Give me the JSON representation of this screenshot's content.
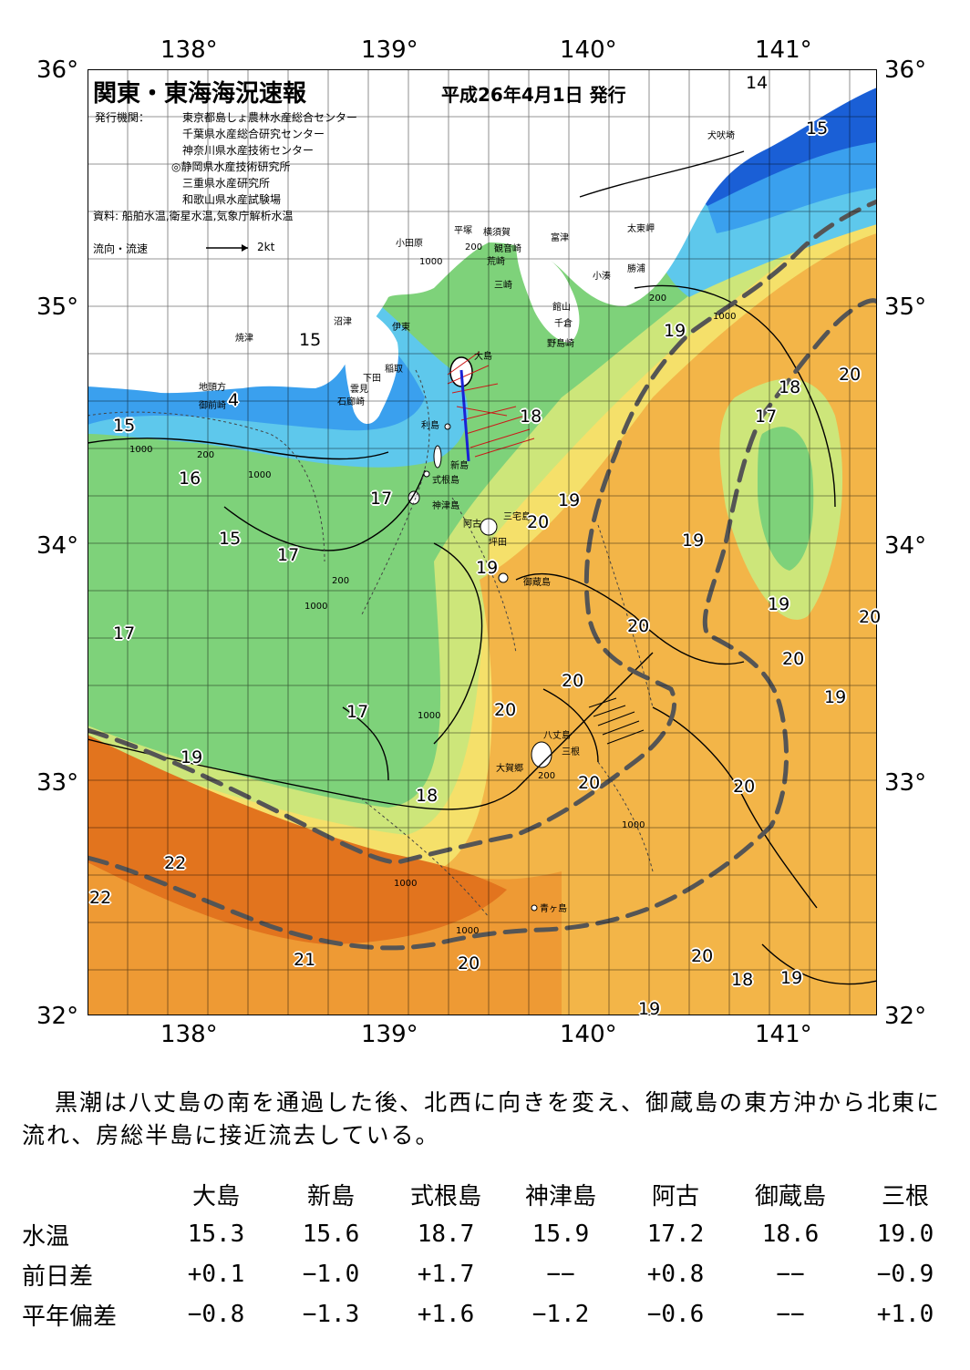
{
  "title": "関東・東海海況速報",
  "issue_date": "平成26年4月1日 発行",
  "issuer_label": "発行機関：",
  "issuers": [
    "東京都島しょ農林水産総合センター",
    "千葉県水産総合研究センター",
    "神奈川県水産技術センター",
    "◎静岡県水産技術研究所",
    "三重県水産研究所",
    "和歌山県水産試験場"
  ],
  "source": "資料: 船舶水温,衛星水温,気象庁解析水温",
  "flow_legend": {
    "label": "流向・流速",
    "speed": "2kt"
  },
  "axes": {
    "lon_ticks": [
      "138°",
      "139°",
      "140°",
      "141°"
    ],
    "lat_ticks": [
      "36°",
      "35°",
      "34°",
      "33°",
      "32°"
    ]
  },
  "colors": {
    "t14": "#1a5fd6",
    "t15": "#3aa0ee",
    "t16": "#5ec8ec",
    "t17": "#7ed27a",
    "t18": "#cde67a",
    "t19": "#f5e06a",
    "t20": "#f3b548",
    "t21": "#ee9a34",
    "t22": "#e2741e",
    "land": "#ffffff",
    "kuroshio_axis": "#555555",
    "track": "#1a22d6"
  },
  "places": [
    {
      "name": "小田原"
    },
    {
      "name": "平塚"
    },
    {
      "name": "横須賀"
    },
    {
      "name": "観音崎"
    },
    {
      "name": "富津"
    },
    {
      "name": "荒崎"
    },
    {
      "name": "三崎"
    },
    {
      "name": "館山"
    },
    {
      "name": "千倉"
    },
    {
      "name": "野島崎"
    },
    {
      "name": "小湊"
    },
    {
      "name": "勝浦"
    },
    {
      "name": "太東岬"
    },
    {
      "name": "犬吠埼"
    },
    {
      "name": "沼津"
    },
    {
      "name": "伊東"
    },
    {
      "name": "焼津"
    },
    {
      "name": "稲取"
    },
    {
      "name": "下田"
    },
    {
      "name": "雲見"
    },
    {
      "name": "石廊崎"
    },
    {
      "name": "地頭方"
    },
    {
      "name": "御前崎"
    },
    {
      "name": "大島"
    },
    {
      "name": "利島"
    },
    {
      "name": "新島"
    },
    {
      "name": "式根島"
    },
    {
      "name": "神津島"
    },
    {
      "name": "三宅島"
    },
    {
      "name": "阿古"
    },
    {
      "name": "坪田"
    },
    {
      "name": "御蔵島"
    },
    {
      "name": "八丈島"
    },
    {
      "name": "三根"
    },
    {
      "name": "大賀郷"
    },
    {
      "name": "青ヶ島"
    }
  ],
  "isotherm_labels": [
    "14",
    "15",
    "19",
    "15",
    "15",
    "4",
    "15",
    "16",
    "15",
    "17",
    "17",
    "17",
    "18",
    "19",
    "20",
    "19",
    "19",
    "18",
    "17",
    "20",
    "20",
    "19",
    "20",
    "20",
    "20",
    "20",
    "17",
    "20",
    "19",
    "19",
    "18",
    "20",
    "22",
    "22",
    "21",
    "20",
    "20",
    "18",
    "19",
    "19"
  ],
  "depth_labels": [
    "200",
    "1000",
    "200",
    "1000",
    "200",
    "1000",
    "200",
    "1000",
    "1000",
    "1000",
    "1000",
    "200",
    "1000",
    "1000"
  ],
  "summary": "黒潮は八丈島の南を通過した後、北西に向きを変え、御蔵島の東方沖から北東に流れ、房総半島に接近流去している。",
  "table": {
    "columns": [
      "大島",
      "新島",
      "式根島",
      "神津島",
      "阿古",
      "御蔵島",
      "三根"
    ],
    "rows": [
      {
        "label": "水温",
        "values": [
          "15.3",
          "15.6",
          "18.7",
          "15.9",
          "17.2",
          "18.6",
          "19.0"
        ]
      },
      {
        "label": "前日差",
        "values": [
          "+0.1",
          "−1.0",
          "+1.7",
          "−−",
          "+0.8",
          "−−",
          "−0.9"
        ]
      },
      {
        "label": "平年偏差",
        "values": [
          "−0.8",
          "−1.3",
          "+1.6",
          "−1.2",
          "−0.6",
          "−−",
          "+1.0"
        ]
      }
    ]
  }
}
